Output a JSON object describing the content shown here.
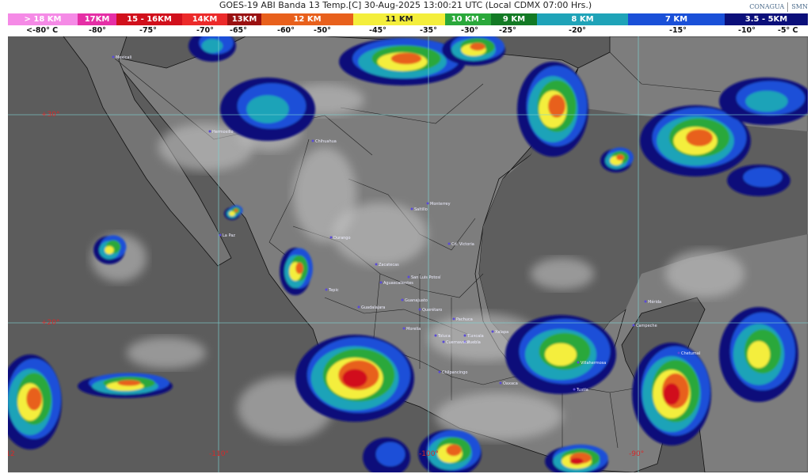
{
  "title": "GOES-19 ABI Banda 13 Temp.[C] 30-Aug-2025 13:00:21 UTC (Local CDMX  07:00 Hrs.)",
  "logos": {
    "conagua": "CONAGUA",
    "smn": "SMN"
  },
  "legend": {
    "segments": [
      {
        "label": "> 18 KM",
        "color": "#f58ae6"
      },
      {
        "label": "17KM",
        "color": "#e52fa6"
      },
      {
        "label": "15 - 16KM",
        "color": "#d1101c"
      },
      {
        "label": "14KM",
        "color": "#ec2a2a"
      },
      {
        "label": "13KM",
        "color": "#9a1010"
      },
      {
        "label": "12 KM",
        "color": "#e8601c"
      },
      {
        "label": "11 KM",
        "color": "#f4ee3c"
      },
      {
        "label": "10 KM -",
        "color": "#2aa83a"
      },
      {
        "label": "9 KM",
        "color": "#137a25"
      },
      {
        "label": "8 KM",
        "color": "#1fa3b8"
      },
      {
        "label": "7 KM",
        "color": "#1a50d8"
      },
      {
        "label": "3.5 - 5KM",
        "color": "#0b0f7a"
      }
    ],
    "temperatures": [
      "<-80° C",
      "-80°",
      "-75°",
      "-70°",
      "-65°",
      "-60°",
      "-50°",
      "-45°",
      "-35°",
      "-30°",
      "-25°",
      "-20°",
      "-15°",
      "-10°",
      "-5° C"
    ]
  },
  "grid": {
    "latitudes": [
      "+30°",
      "+20°"
    ],
    "longitudes": [
      "-12",
      "-110°",
      "-100°",
      "-90°"
    ]
  },
  "cities": [
    "Mexicali",
    "Hermosillo",
    "Chihuahua",
    "La Paz",
    "Durango",
    "Saltillo",
    "Monterrey",
    "Cd. Victoria",
    "Zacatecas",
    "San Luis Potosí",
    "Aguascalientes",
    "Tepic",
    "Guadalajara",
    "Guanajuato",
    "Querétaro",
    "Pachuca",
    "Morelia",
    "Toluca",
    "Tlaxcala",
    "Puebla",
    "Cuernavaca",
    "Xalapa",
    "Chilpancingo",
    "Oaxaca",
    "Villahermosa",
    "Tuxtla",
    "Campeche",
    "Mérida",
    "Chetumal"
  ]
}
